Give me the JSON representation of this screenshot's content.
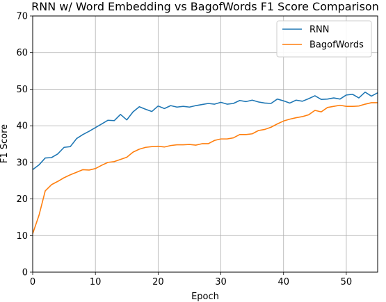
{
  "chart_data": {
    "type": "line",
    "title": "RNN w/ Word Embedding vs BagofWords F1 Score Comparison",
    "xlabel": "Epoch",
    "ylabel": "F1 Score",
    "xlim": [
      0,
      55
    ],
    "ylim": [
      0,
      70
    ],
    "xticks": [
      0,
      10,
      20,
      30,
      40,
      50
    ],
    "yticks": [
      0,
      10,
      20,
      30,
      40,
      50,
      60,
      70
    ],
    "grid": true,
    "legend_position": "top-right",
    "series": [
      {
        "name": "RNN",
        "color": "#1f77b4",
        "x": [
          0,
          1,
          2,
          3,
          4,
          5,
          6,
          7,
          8,
          9,
          10,
          11,
          12,
          13,
          14,
          15,
          16,
          17,
          18,
          19,
          20,
          21,
          22,
          23,
          24,
          25,
          26,
          27,
          28,
          29,
          30,
          31,
          32,
          33,
          34,
          35,
          36,
          37,
          38,
          39,
          40,
          41,
          42,
          43,
          44,
          45,
          46,
          47,
          48,
          49,
          50,
          51,
          52,
          53,
          54,
          55
        ],
        "values": [
          28.0,
          29.3,
          31.2,
          31.3,
          32.3,
          34.1,
          34.3,
          36.5,
          37.6,
          38.5,
          39.5,
          40.5,
          41.5,
          41.4,
          43.1,
          41.6,
          43.8,
          45.2,
          44.5,
          43.9,
          45.4,
          44.7,
          45.5,
          45.1,
          45.3,
          45.1,
          45.5,
          45.8,
          46.1,
          45.9,
          46.4,
          45.9,
          46.1,
          46.9,
          46.6,
          47.0,
          46.5,
          46.2,
          46.1,
          47.3,
          46.8,
          46.2,
          47.0,
          46.7,
          47.4,
          48.2,
          47.2,
          47.3,
          47.6,
          47.3,
          48.4,
          48.6,
          47.6,
          49.2,
          48.1,
          49.0
        ]
      },
      {
        "name": "BagofWords",
        "color": "#ff7f0e",
        "x": [
          0,
          1,
          2,
          3,
          4,
          5,
          6,
          7,
          8,
          9,
          10,
          11,
          12,
          13,
          14,
          15,
          16,
          17,
          18,
          19,
          20,
          21,
          22,
          23,
          24,
          25,
          26,
          27,
          28,
          29,
          30,
          31,
          32,
          33,
          34,
          35,
          36,
          37,
          38,
          39,
          40,
          41,
          42,
          43,
          44,
          45,
          46,
          47,
          48,
          49,
          50,
          51,
          52,
          53,
          54,
          55
        ],
        "values": [
          10.5,
          15.5,
          22.2,
          23.9,
          24.8,
          25.8,
          26.6,
          27.3,
          28.0,
          27.9,
          28.3,
          29.2,
          30.0,
          30.2,
          30.8,
          31.4,
          32.8,
          33.6,
          34.1,
          34.3,
          34.4,
          34.2,
          34.6,
          34.8,
          34.8,
          34.9,
          34.7,
          35.1,
          35.1,
          36.0,
          36.4,
          36.4,
          36.7,
          37.6,
          37.6,
          37.8,
          38.7,
          39.0,
          39.6,
          40.5,
          41.3,
          41.8,
          42.2,
          42.5,
          43.0,
          44.2,
          43.8,
          45.0,
          45.3,
          45.6,
          45.3,
          45.3,
          45.4,
          45.9,
          46.3,
          46.3
        ]
      }
    ]
  }
}
